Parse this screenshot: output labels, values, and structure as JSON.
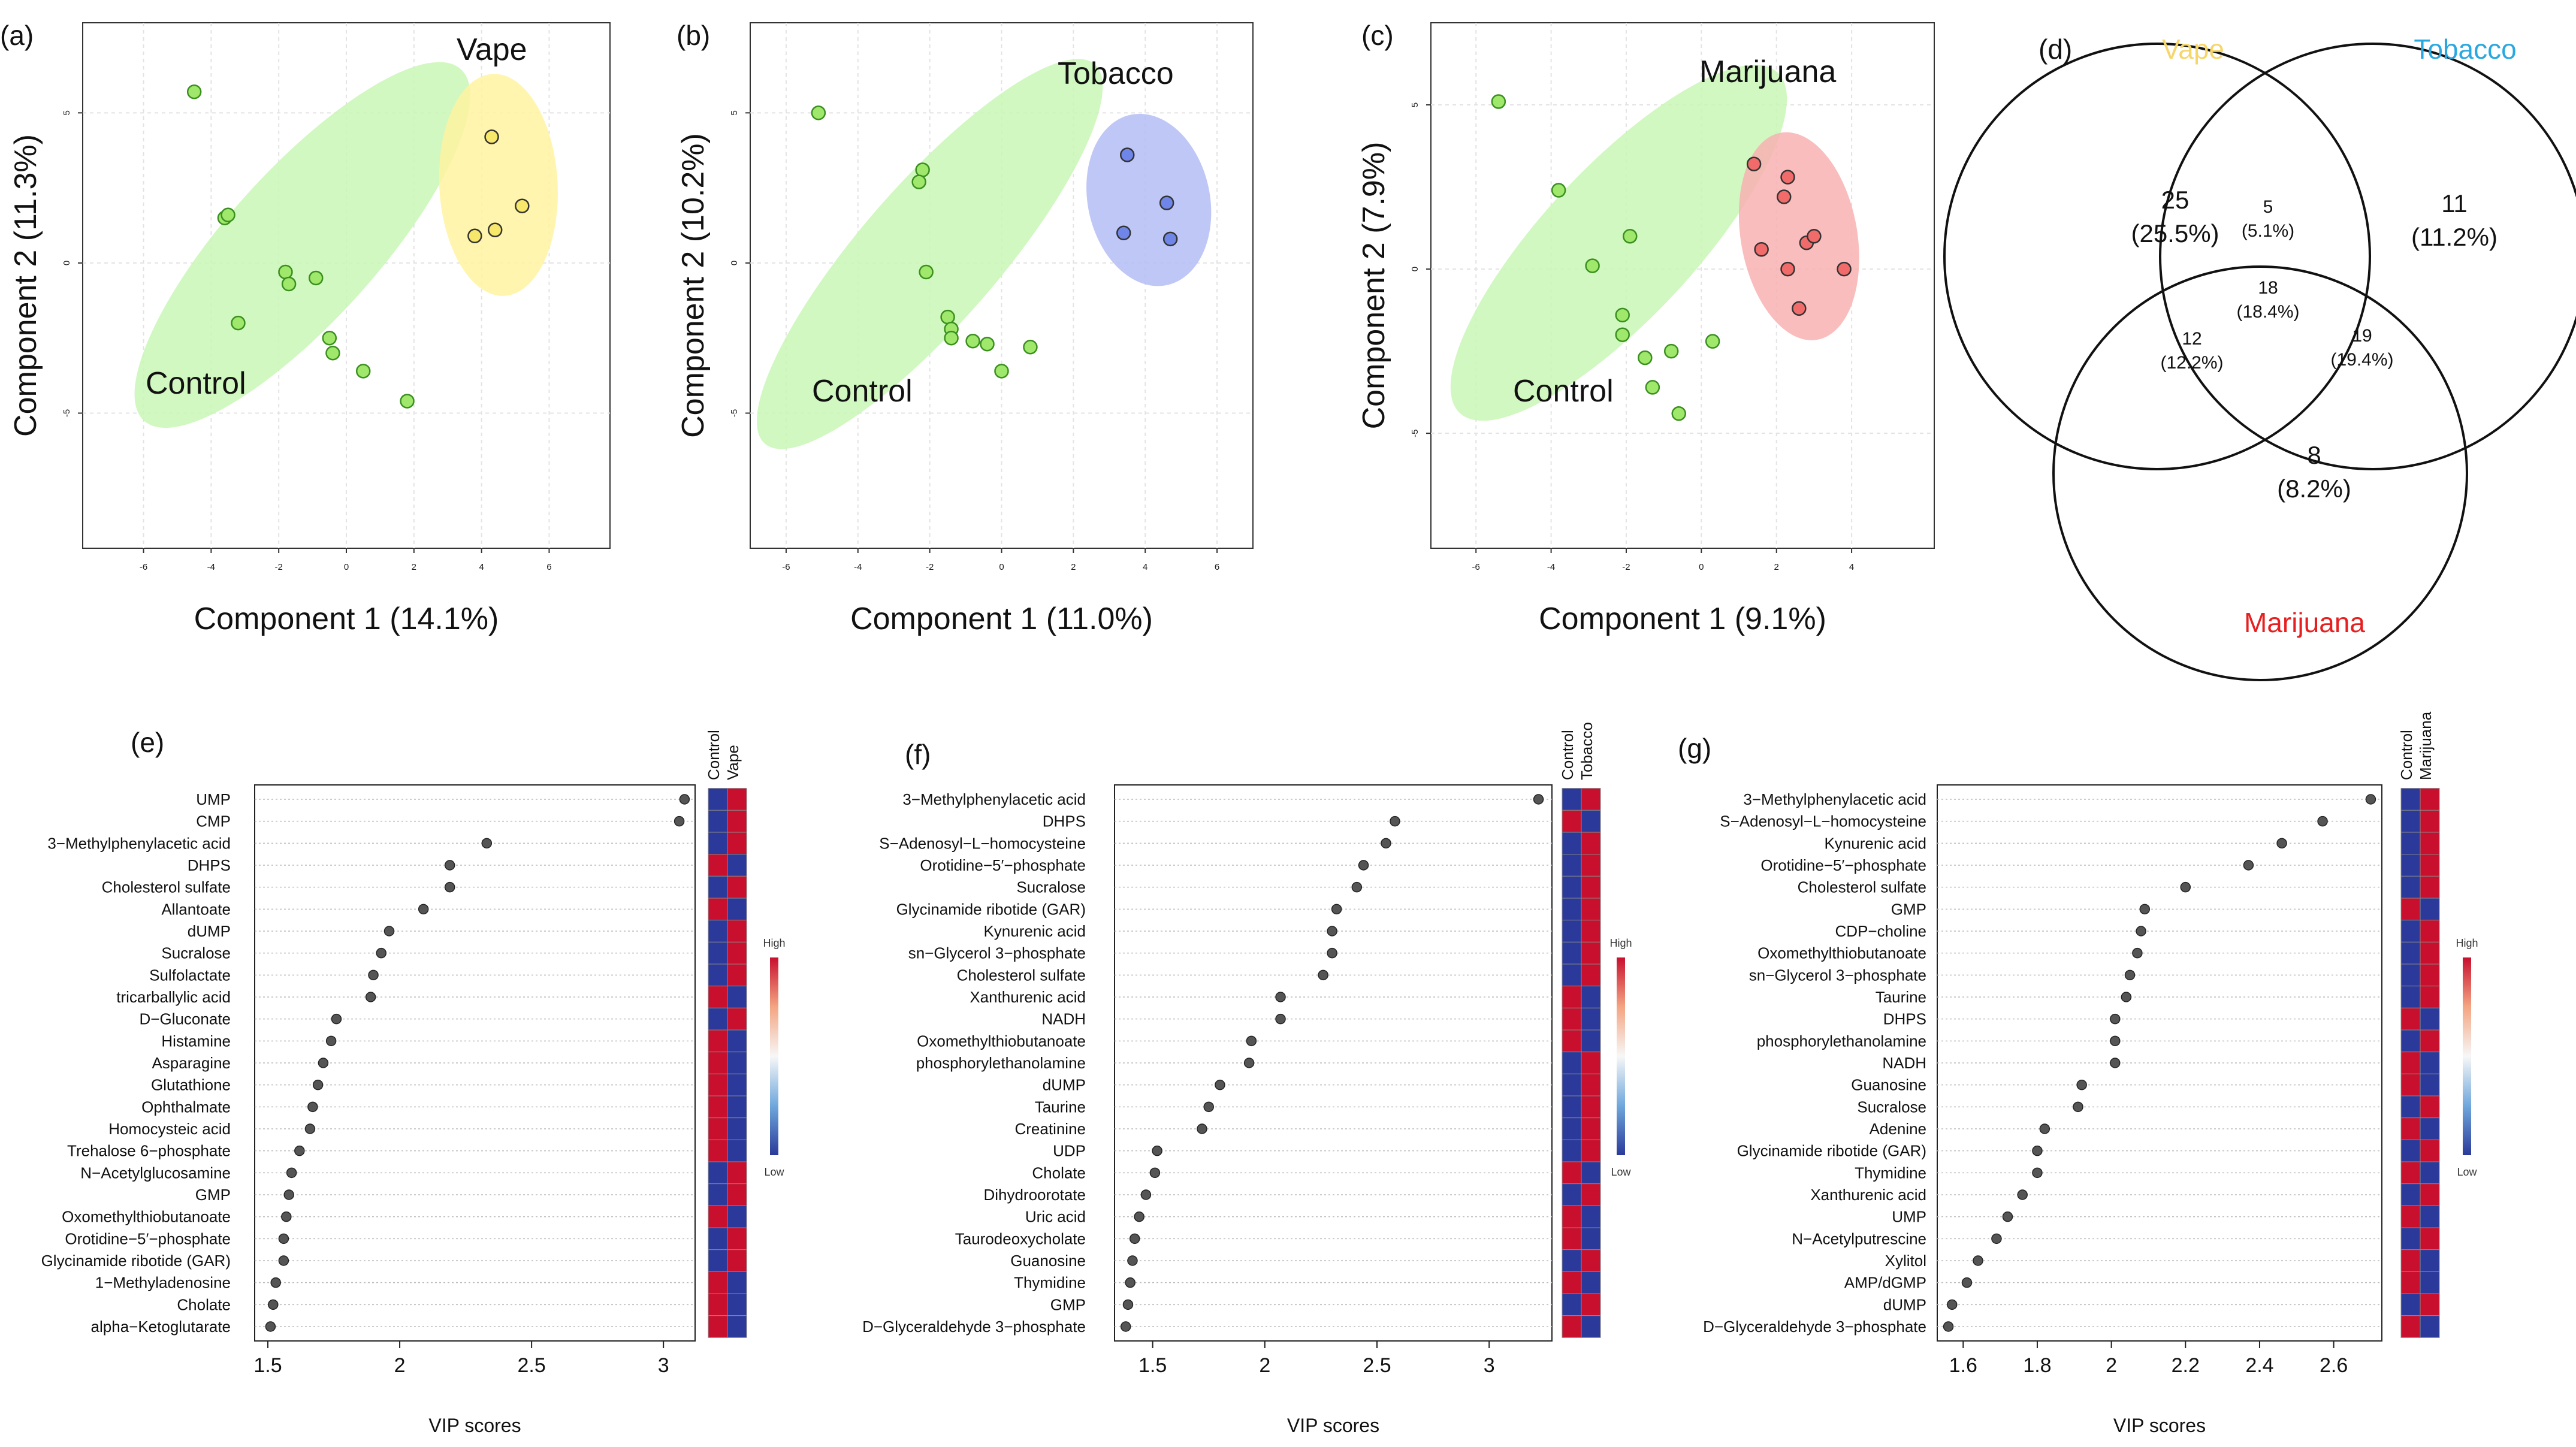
{
  "pca": [
    {
      "label": "(a)",
      "xlabel": "Component 1 (14.1%)",
      "ylabel": "Component 2 (11.3%)",
      "treatment": "Vape",
      "control_label": "Control",
      "treat_color": "#fff3a0",
      "treat_stroke": "#e6d200",
      "x_ticks": [
        "-6",
        "-4",
        "-2",
        "0",
        "2",
        "4",
        "6"
      ],
      "y_ticks": [
        "5",
        "0",
        "-5"
      ],
      "control_points": [
        [
          -4.5,
          5.7
        ],
        [
          -3.6,
          1.5
        ],
        [
          -3.5,
          1.6
        ],
        [
          -3.2,
          -2.0
        ],
        [
          -1.8,
          -0.3
        ],
        [
          -1.7,
          -0.7
        ],
        [
          -0.9,
          -0.5
        ],
        [
          -0.5,
          -2.5
        ],
        [
          -0.4,
          -3.0
        ],
        [
          0.5,
          -3.6
        ],
        [
          1.8,
          -4.6
        ]
      ],
      "treat_points": [
        [
          4.3,
          4.2
        ],
        [
          5.2,
          1.9
        ],
        [
          4.4,
          1.1
        ],
        [
          3.8,
          0.9
        ]
      ]
    },
    {
      "label": "(b)",
      "xlabel": "Component 1 (11.0%)",
      "ylabel": "Component 2 (10.2%)",
      "treatment": "Tobacco",
      "control_label": "Control",
      "treat_color": "#b4bdf5",
      "treat_stroke": "#6e7be0",
      "x_ticks": [
        "-6",
        "-4",
        "-2",
        "0",
        "2",
        "4",
        "6"
      ],
      "y_ticks": [
        "5",
        "0",
        "-5"
      ],
      "control_points": [
        [
          -5.1,
          5.0
        ],
        [
          -2.2,
          3.1
        ],
        [
          -2.3,
          2.7
        ],
        [
          -2.1,
          -0.3
        ],
        [
          -1.5,
          -1.8
        ],
        [
          -1.4,
          -2.2
        ],
        [
          -1.4,
          -2.5
        ],
        [
          -0.8,
          -2.6
        ],
        [
          -0.4,
          -2.7
        ],
        [
          0.0,
          -3.6
        ],
        [
          0.8,
          -2.8
        ]
      ],
      "treat_points": [
        [
          3.5,
          3.6
        ],
        [
          4.6,
          2.0
        ],
        [
          3.4,
          1.0
        ],
        [
          4.7,
          0.8
        ]
      ]
    },
    {
      "label": "(c)",
      "xlabel": "Component 1 (9.1%)",
      "ylabel": "Component 2 (7.9%)",
      "treatment": "Marijuana",
      "control_label": "Control",
      "treat_color": "#f8b2b2",
      "treat_stroke": "#e06060",
      "x_ticks": [
        "-6",
        "-4",
        "-2",
        "0",
        "2",
        "4"
      ],
      "y_ticks": [
        "5",
        "0",
        "-5"
      ],
      "control_points": [
        [
          -5.4,
          5.1
        ],
        [
          -3.8,
          2.4
        ],
        [
          -2.9,
          0.1
        ],
        [
          -1.9,
          1.0
        ],
        [
          -2.1,
          -1.4
        ],
        [
          -2.1,
          -2.0
        ],
        [
          -1.5,
          -2.7
        ],
        [
          -1.3,
          -3.6
        ],
        [
          -0.8,
          -2.5
        ],
        [
          -0.6,
          -4.4
        ],
        [
          0.3,
          -2.2
        ]
      ],
      "treat_points": [
        [
          1.4,
          3.2
        ],
        [
          2.3,
          2.8
        ],
        [
          2.2,
          2.2
        ],
        [
          1.6,
          0.6
        ],
        [
          2.8,
          0.8
        ],
        [
          3.0,
          1.0
        ],
        [
          2.3,
          0.0
        ],
        [
          3.8,
          0.0
        ],
        [
          2.6,
          -1.2
        ]
      ]
    }
  ],
  "venn": {
    "label": "(d)",
    "sets": [
      {
        "name": "Vape",
        "color": "#f6d66a"
      },
      {
        "name": "Tobacco",
        "color": "#29a8e0"
      },
      {
        "name": "Marijuana",
        "color": "#e62020"
      }
    ],
    "regions": {
      "vape_only": {
        "count": "25",
        "pct": "(25.5%)"
      },
      "tobacco_only": {
        "count": "11",
        "pct": "(11.2%)"
      },
      "marijuana_only": {
        "count": "8",
        "pct": "(8.2%)"
      },
      "vape_tobacco": {
        "count": "5",
        "pct": "(5.1%)"
      },
      "vape_marijuana": {
        "count": "12",
        "pct": "(12.2%)"
      },
      "tobacco_marijuana": {
        "count": "19",
        "pct": "(19.4%)"
      },
      "all_three": {
        "count": "18",
        "pct": "(18.4%)"
      }
    }
  },
  "vip": [
    {
      "label": "(e)",
      "xlabel": "VIP scores",
      "cols": [
        "Control",
        "Vape"
      ],
      "x_ticks": [
        1.5,
        2.0,
        2.5,
        3.0
      ],
      "xlim": [
        1.45,
        3.12
      ],
      "scale_high": "High",
      "scale_low": "Low",
      "items": [
        {
          "name": "UMP",
          "vip": 3.08,
          "hi": 1
        },
        {
          "name": "CMP",
          "vip": 3.06,
          "hi": 1
        },
        {
          "name": "3−Methylphenylacetic acid",
          "vip": 2.33,
          "hi": 1
        },
        {
          "name": "DHPS",
          "vip": 2.19,
          "hi": 0
        },
        {
          "name": "Cholesterol sulfate",
          "vip": 2.19,
          "hi": 1
        },
        {
          "name": "Allantoate",
          "vip": 2.09,
          "hi": 0
        },
        {
          "name": "dUMP",
          "vip": 1.96,
          "hi": 1
        },
        {
          "name": "Sucralose",
          "vip": 1.93,
          "hi": 1
        },
        {
          "name": "Sulfolactate",
          "vip": 1.9,
          "hi": 1
        },
        {
          "name": "tricarballylic acid",
          "vip": 1.89,
          "hi": 0
        },
        {
          "name": "D−Gluconate",
          "vip": 1.76,
          "hi": 1
        },
        {
          "name": "Histamine",
          "vip": 1.74,
          "hi": 0
        },
        {
          "name": "Asparagine",
          "vip": 1.71,
          "hi": 0
        },
        {
          "name": "Glutathione",
          "vip": 1.69,
          "hi": 0
        },
        {
          "name": "Ophthalmate",
          "vip": 1.67,
          "hi": 0
        },
        {
          "name": "Homocysteic acid",
          "vip": 1.66,
          "hi": 0
        },
        {
          "name": "Trehalose 6−phosphate",
          "vip": 1.62,
          "hi": 0
        },
        {
          "name": "N−Acetylglucosamine",
          "vip": 1.59,
          "hi": 1
        },
        {
          "name": "GMP",
          "vip": 1.58,
          "hi": 1
        },
        {
          "name": "Oxomethylthiobutanoate",
          "vip": 1.57,
          "hi": 0
        },
        {
          "name": "Orotidine−5′−phosphate",
          "vip": 1.56,
          "hi": 1
        },
        {
          "name": "Glycinamide ribotide (GAR)",
          "vip": 1.56,
          "hi": 1
        },
        {
          "name": "1−Methyladenosine",
          "vip": 1.53,
          "hi": 0
        },
        {
          "name": "Cholate",
          "vip": 1.52,
          "hi": 0
        },
        {
          "name": "alpha−Ketoglutarate",
          "vip": 1.51,
          "hi": 0
        }
      ]
    },
    {
      "label": "(f)",
      "xlabel": "VIP scores",
      "cols": [
        "Control",
        "Tobacco"
      ],
      "x_ticks": [
        1.5,
        2.0,
        2.5,
        3.0
      ],
      "xlim": [
        1.33,
        3.28
      ],
      "scale_high": "High",
      "scale_low": "Low",
      "items": [
        {
          "name": "3−Methylphenylacetic acid",
          "vip": 3.22,
          "hi": 1
        },
        {
          "name": "DHPS",
          "vip": 2.58,
          "hi": 0
        },
        {
          "name": "S−Adenosyl−L−homocysteine",
          "vip": 2.54,
          "hi": 1
        },
        {
          "name": "Orotidine−5′−phosphate",
          "vip": 2.44,
          "hi": 1
        },
        {
          "name": "Sucralose",
          "vip": 2.41,
          "hi": 1
        },
        {
          "name": "Glycinamide ribotide (GAR)",
          "vip": 2.32,
          "hi": 1
        },
        {
          "name": "Kynurenic acid",
          "vip": 2.3,
          "hi": 1
        },
        {
          "name": "sn−Glycerol 3−phosphate",
          "vip": 2.3,
          "hi": 1
        },
        {
          "name": "Cholesterol sulfate",
          "vip": 2.26,
          "hi": 1
        },
        {
          "name": "Xanthurenic acid",
          "vip": 2.07,
          "hi": 0
        },
        {
          "name": "NADH",
          "vip": 2.07,
          "hi": 0
        },
        {
          "name": "Oxomethylthiobutanoate",
          "vip": 1.94,
          "hi": 0
        },
        {
          "name": "phosphorylethanolamine",
          "vip": 1.93,
          "hi": 1
        },
        {
          "name": "dUMP",
          "vip": 1.8,
          "hi": 1
        },
        {
          "name": "Taurine",
          "vip": 1.75,
          "hi": 1
        },
        {
          "name": "Creatinine",
          "vip": 1.72,
          "hi": 1
        },
        {
          "name": "UDP",
          "vip": 1.52,
          "hi": 1
        },
        {
          "name": "Cholate",
          "vip": 1.51,
          "hi": 0
        },
        {
          "name": "Dihydroorotate",
          "vip": 1.47,
          "hi": 1
        },
        {
          "name": "Uric acid",
          "vip": 1.44,
          "hi": 0
        },
        {
          "name": "Taurodeoxycholate",
          "vip": 1.42,
          "hi": 0
        },
        {
          "name": "Guanosine",
          "vip": 1.41,
          "hi": 1
        },
        {
          "name": "Thymidine",
          "vip": 1.4,
          "hi": 0
        },
        {
          "name": "GMP",
          "vip": 1.39,
          "hi": 1
        },
        {
          "name": "D−Glyceraldehyde 3−phosphate",
          "vip": 1.38,
          "hi": 0
        }
      ]
    },
    {
      "label": "(g)",
      "xlabel": "VIP scores",
      "cols": [
        "Control",
        "Marijuana"
      ],
      "x_ticks": [
        1.6,
        1.8,
        2.0,
        2.2,
        2.4,
        2.6
      ],
      "xlim": [
        1.53,
        2.73
      ],
      "scale_high": "High",
      "scale_low": "Low",
      "items": [
        {
          "name": "3−Methylphenylacetic acid",
          "vip": 2.7,
          "hi": 1
        },
        {
          "name": "S−Adenosyl−L−homocysteine",
          "vip": 2.57,
          "hi": 1
        },
        {
          "name": "Kynurenic acid",
          "vip": 2.46,
          "hi": 1
        },
        {
          "name": "Orotidine−5′−phosphate",
          "vip": 2.37,
          "hi": 1
        },
        {
          "name": "Cholesterol sulfate",
          "vip": 2.2,
          "hi": 1
        },
        {
          "name": "GMP",
          "vip": 2.09,
          "hi": 0
        },
        {
          "name": "CDP−choline",
          "vip": 2.08,
          "hi": 1
        },
        {
          "name": "Oxomethylthiobutanoate",
          "vip": 2.07,
          "hi": 1
        },
        {
          "name": "sn−Glycerol 3−phosphate",
          "vip": 2.05,
          "hi": 1
        },
        {
          "name": "Taurine",
          "vip": 2.04,
          "hi": 1
        },
        {
          "name": "DHPS",
          "vip": 2.01,
          "hi": 0
        },
        {
          "name": "phosphorylethanolamine",
          "vip": 2.01,
          "hi": 1
        },
        {
          "name": "NADH",
          "vip": 2.01,
          "hi": 0
        },
        {
          "name": "Guanosine",
          "vip": 1.92,
          "hi": 0
        },
        {
          "name": "Sucralose",
          "vip": 1.91,
          "hi": 1
        },
        {
          "name": "Adenine",
          "vip": 1.82,
          "hi": 0
        },
        {
          "name": "Glycinamide ribotide (GAR)",
          "vip": 1.8,
          "hi": 1
        },
        {
          "name": "Thymidine",
          "vip": 1.8,
          "hi": 0
        },
        {
          "name": "Xanthurenic acid",
          "vip": 1.76,
          "hi": 1
        },
        {
          "name": "UMP",
          "vip": 1.72,
          "hi": 0
        },
        {
          "name": "N−Acetylputrescine",
          "vip": 1.69,
          "hi": 1
        },
        {
          "name": "Xylitol",
          "vip": 1.64,
          "hi": 0
        },
        {
          "name": "AMP/dGMP",
          "vip": 1.61,
          "hi": 0
        },
        {
          "name": "dUMP",
          "vip": 1.57,
          "hi": 1
        },
        {
          "name": "D−Glyceraldehyde 3−phosphate",
          "vip": 1.56,
          "hi": 0
        }
      ]
    }
  ]
}
